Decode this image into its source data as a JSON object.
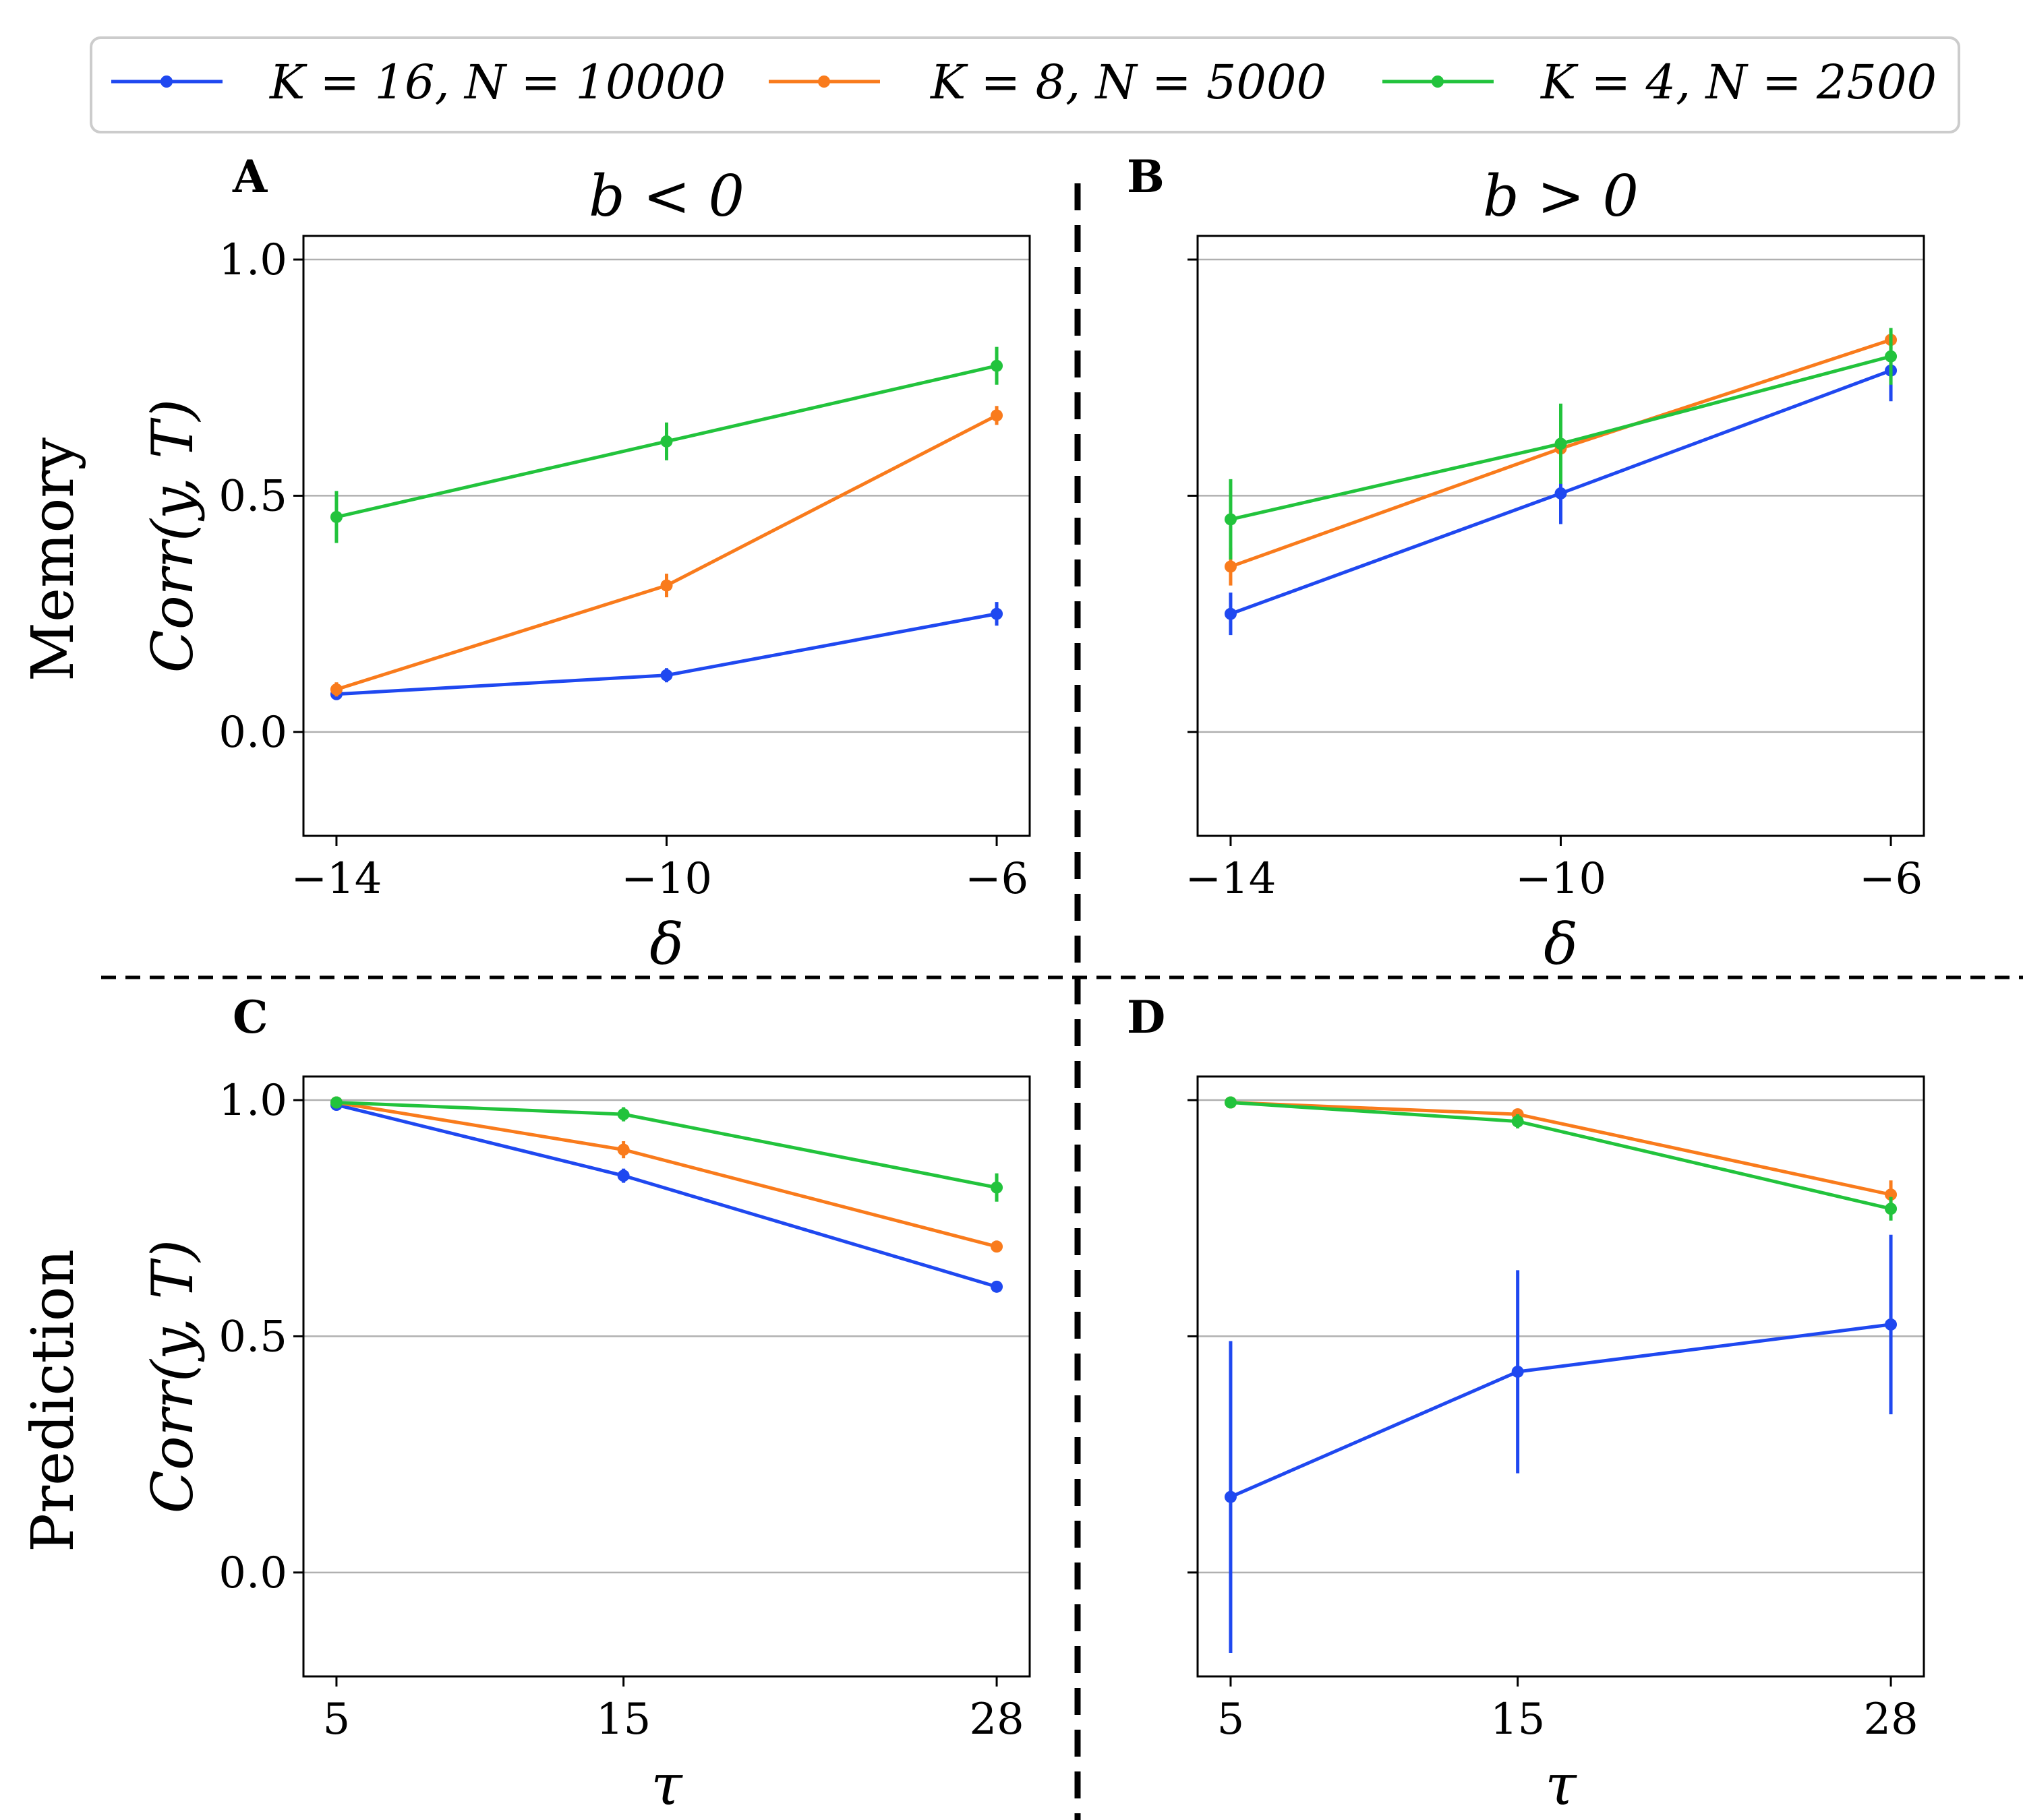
{
  "chart_data": {
    "type": "line",
    "legend": [
      {
        "label": "K = 16, N = 10000",
        "color": "#1f48f0"
      },
      {
        "label": "K = 8, N = 5000",
        "color": "#f97b1c"
      },
      {
        "label": "K = 4, N = 2500",
        "color": "#22c33c"
      }
    ],
    "row_labels": [
      "Memory",
      "Prediction"
    ],
    "ylabel": "Corr(y, T)",
    "ylim": [
      -0.22,
      1.05
    ],
    "yticks": [
      0.0,
      0.5,
      1.0
    ],
    "ytick_labels": [
      "0.0",
      "0.5",
      "1.0"
    ],
    "panels": [
      {
        "id": "A",
        "title": "b < 0",
        "xlabel": "δ",
        "x": [
          -14,
          -10,
          -6
        ],
        "xtick_labels": [
          "−14",
          "−10",
          "−6"
        ],
        "xlim": [
          -14.4,
          -5.6
        ],
        "series": [
          {
            "name": "K = 16, N = 10000",
            "values": [
              0.08,
              0.12,
              0.25
            ],
            "err": [
              0.01,
              0.015,
              0.025
            ]
          },
          {
            "name": "K = 8, N = 5000",
            "values": [
              0.09,
              0.31,
              0.67
            ],
            "err": [
              0.015,
              0.025,
              0.02
            ]
          },
          {
            "name": "K = 4, N = 2500",
            "values": [
              0.455,
              0.615,
              0.775
            ],
            "err": [
              0.055,
              0.04,
              0.04
            ]
          }
        ]
      },
      {
        "id": "B",
        "title": "b > 0",
        "xlabel": "δ",
        "x": [
          -14,
          -10,
          -6
        ],
        "xtick_labels": [
          "−14",
          "−10",
          "−6"
        ],
        "xlim": [
          -14.4,
          -5.6
        ],
        "series": [
          {
            "name": "K = 16, N = 10000",
            "values": [
              0.25,
              0.505,
              0.765
            ],
            "err": [
              0.045,
              0.065,
              0.065
            ]
          },
          {
            "name": "K = 8, N = 5000",
            "values": [
              0.35,
              0.6,
              0.83
            ],
            "err": [
              0.04,
              0.05,
              0.02
            ]
          },
          {
            "name": "K = 4, N = 2500",
            "values": [
              0.45,
              0.61,
              0.795
            ],
            "err": [
              0.085,
              0.085,
              0.06
            ]
          }
        ]
      },
      {
        "id": "C",
        "title": "",
        "xlabel": "τ",
        "x": [
          5,
          15,
          28
        ],
        "xtick_labels": [
          "5",
          "15",
          "28"
        ],
        "xlim": [
          3.85,
          29.15
        ],
        "series": [
          {
            "name": "K = 16, N = 10000",
            "values": [
              0.99,
              0.84,
              0.605
            ],
            "err": [
              0.005,
              0.015,
              0.012
            ]
          },
          {
            "name": "K = 8, N = 5000",
            "values": [
              0.995,
              0.895,
              0.69
            ],
            "err": [
              0.005,
              0.018,
              0.01
            ]
          },
          {
            "name": "K = 4, N = 2500",
            "values": [
              0.995,
              0.97,
              0.815
            ],
            "err": [
              0.005,
              0.015,
              0.03
            ]
          }
        ]
      },
      {
        "id": "D",
        "title": "",
        "xlabel": "τ",
        "x": [
          5,
          15,
          28
        ],
        "xtick_labels": [
          "5",
          "15",
          "28"
        ],
        "xlim": [
          3.85,
          29.15
        ],
        "series": [
          {
            "name": "K = 16, N = 10000",
            "values": [
              0.16,
              0.425,
              0.525
            ],
            "err": [
              0.33,
              0.215,
              0.19
            ]
          },
          {
            "name": "K = 8, N = 5000",
            "values": [
              0.995,
              0.97,
              0.8
            ],
            "err": [
              0.005,
              0.012,
              0.03
            ]
          },
          {
            "name": "K = 4, N = 2500",
            "values": [
              0.995,
              0.955,
              0.77
            ],
            "err": [
              0.005,
              0.015,
              0.025
            ]
          }
        ]
      }
    ]
  }
}
